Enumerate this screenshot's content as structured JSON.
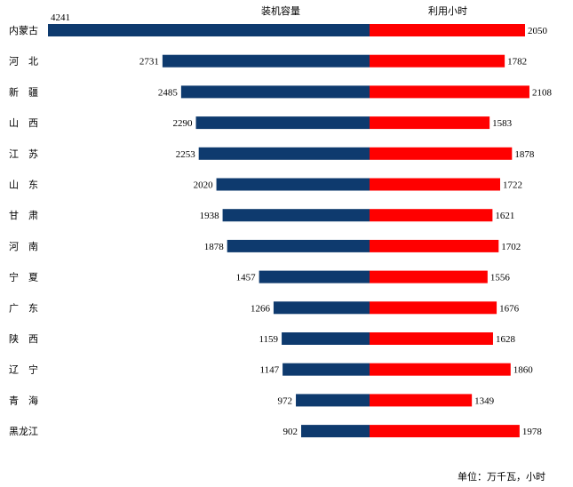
{
  "chart_data": {
    "type": "bar",
    "orientation": "horizontal-diverging",
    "series": [
      {
        "name": "装机容量",
        "color": "#0e3a6e",
        "values": [
          4241,
          2731,
          2485,
          2290,
          2253,
          2020,
          1938,
          1878,
          1457,
          1266,
          1159,
          1147,
          972,
          902
        ]
      },
      {
        "name": "利用小时",
        "color": "#ff0000",
        "values": [
          2050,
          1782,
          2108,
          1583,
          1878,
          1722,
          1621,
          1702,
          1556,
          1676,
          1628,
          1860,
          1349,
          1978
        ]
      }
    ],
    "categories": [
      "内蒙古",
      "河　北",
      "新　疆",
      "山　西",
      "江　苏",
      "山　东",
      "甘　肃",
      "河　南",
      "宁　夏",
      "广　东",
      "陕　西",
      "辽　宁",
      "青　海",
      "黑龙江"
    ],
    "unit_note": "单位：万千瓦，小时",
    "legend": "top"
  }
}
